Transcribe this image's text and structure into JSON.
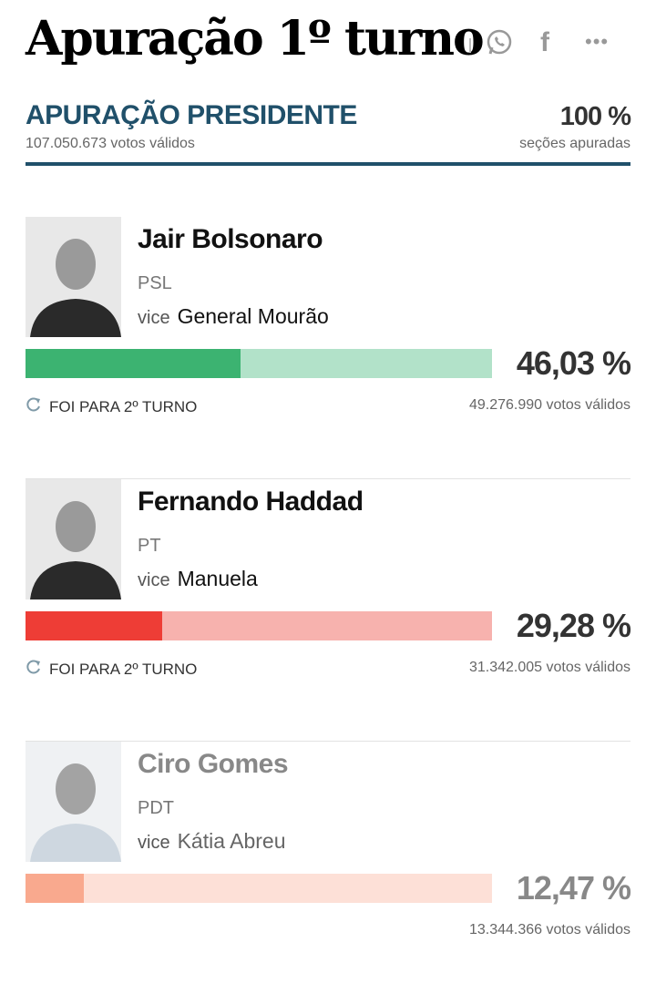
{
  "page_title": "Apuração 1º turno",
  "share": {
    "icons": [
      "whatsapp-icon",
      "facebook-icon",
      "more-icon"
    ],
    "facebook_glyph": "f",
    "more_glyph": "•••"
  },
  "header": {
    "title": "APURAÇÃO PRESIDENTE",
    "total_votes": "107.050.673 votos válidos",
    "sections_pct": "100 %",
    "sections_label": "seções apuradas",
    "accent": "#20506a"
  },
  "candidates": [
    {
      "name": "Jair Bolsonaro",
      "party": "PSL",
      "vice_label": "vice",
      "vice": "General Mourão",
      "percent_text": "46,03 %",
      "percent": 46.03,
      "status": "FOI PARA 2º TURNO",
      "votes": "49.276.990 votos válidos",
      "color": "#3cb371",
      "track_color": "#b2e2c9"
    },
    {
      "name": "Fernando Haddad",
      "party": "PT",
      "vice_label": "vice",
      "vice": "Manuela",
      "percent_text": "29,28 %",
      "percent": 29.28,
      "status": "FOI PARA 2º TURNO",
      "votes": "31.342.005 votos válidos",
      "color": "#ee3d36",
      "track_color": "#f7b2ae"
    },
    {
      "name": "Ciro Gomes",
      "party": "PDT",
      "vice_label": "vice",
      "vice": "Kátia Abreu",
      "percent_text": "12,47 %",
      "percent": 12.47,
      "votes": "13.344.366 votos válidos",
      "color": "#f9a98e",
      "track_color": "#fde0d7"
    }
  ]
}
